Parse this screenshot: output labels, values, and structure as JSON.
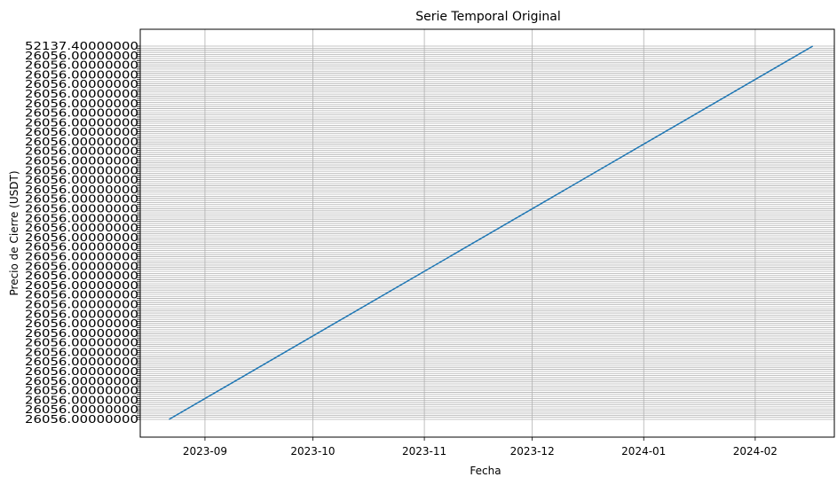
{
  "chart_data": {
    "type": "line",
    "title": "Serie Temporal Original",
    "xlabel": "Fecha",
    "ylabel": "Precio de Cierre (USDT)",
    "grid": true,
    "legend": "none",
    "x_ticks": [
      "2023-09",
      "2023-10",
      "2023-11",
      "2023-12",
      "2024-01",
      "2024-02"
    ],
    "x_tick_dates": [
      "2023-09-01",
      "2023-10-01",
      "2023-11-01",
      "2023-12-01",
      "2024-01-01",
      "2024-02-01"
    ],
    "xlim": [
      "2023-08-14",
      "2024-02-23"
    ],
    "y_tick_labels_note": "Each closing price is used as its own categorical y tick, producing heavily overlapping labels",
    "y_ticks_first": "26056.00000000",
    "y_ticks_last": "52137.40000000",
    "y_tick_count": 180,
    "series": [
      {
        "color": "#1f77b4",
        "x": [
          "2023-08-22",
          "2024-02-17"
        ],
        "y": [
          26056.0,
          52137.4
        ]
      }
    ]
  }
}
